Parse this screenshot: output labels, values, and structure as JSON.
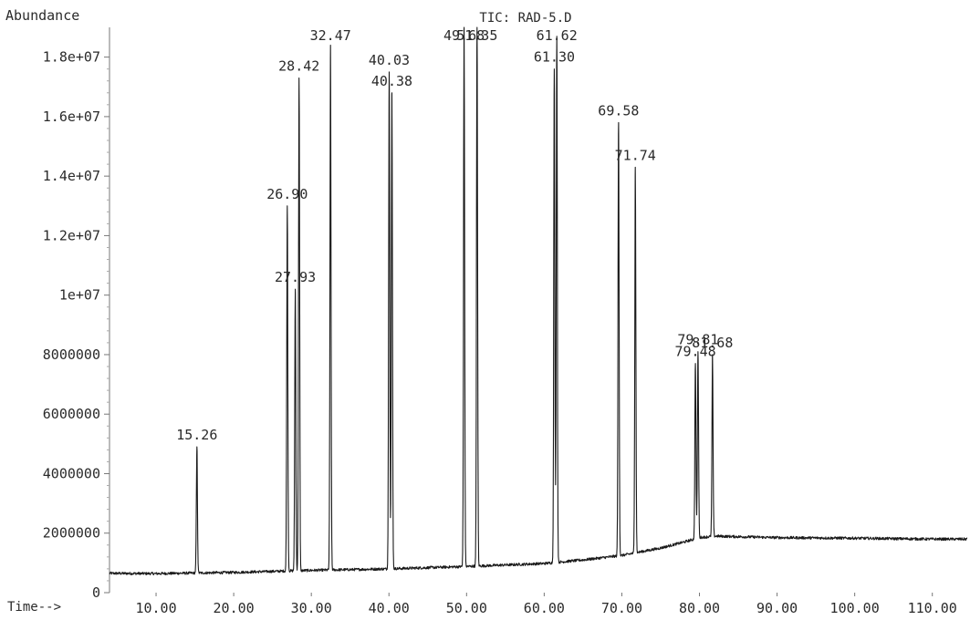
{
  "chart_data": {
    "type": "line",
    "title": "TIC: RAD-5.D",
    "ylabel": "Abundance",
    "xlabel": "Time-->",
    "xlim": [
      4.0,
      114.5
    ],
    "ylim": [
      0,
      19000000
    ],
    "y_ticks": [
      {
        "value": 0,
        "label": "0"
      },
      {
        "value": 2000000,
        "label": "2000000"
      },
      {
        "value": 4000000,
        "label": "4000000"
      },
      {
        "value": 6000000,
        "label": "6000000"
      },
      {
        "value": 8000000,
        "label": "8000000"
      },
      {
        "value": 10000000,
        "label": "1e+07"
      },
      {
        "value": 12000000,
        "label": "1.2e+07"
      },
      {
        "value": 14000000,
        "label": "1.4e+07"
      },
      {
        "value": 16000000,
        "label": "1.6e+07"
      },
      {
        "value": 18000000,
        "label": "1.8e+07"
      }
    ],
    "x_ticks": [
      {
        "value": 10,
        "label": "10.00"
      },
      {
        "value": 20,
        "label": "20.00"
      },
      {
        "value": 30,
        "label": "30.00"
      },
      {
        "value": 40,
        "label": "40.00"
      },
      {
        "value": 50,
        "label": "50.00"
      },
      {
        "value": 60,
        "label": "60.00"
      },
      {
        "value": 70,
        "label": "70.00"
      },
      {
        "value": 80,
        "label": "80.00"
      },
      {
        "value": 90,
        "label": "90.00"
      },
      {
        "value": 100,
        "label": "100.00"
      },
      {
        "value": 110,
        "label": "110.00"
      }
    ],
    "baseline": [
      [
        4.0,
        650000
      ],
      [
        10,
        640000
      ],
      [
        20,
        680000
      ],
      [
        30,
        750000
      ],
      [
        40,
        800000
      ],
      [
        50,
        880000
      ],
      [
        60,
        980000
      ],
      [
        65,
        1100000
      ],
      [
        70,
        1250000
      ],
      [
        72,
        1350000
      ],
      [
        75,
        1500000
      ],
      [
        78,
        1700000
      ],
      [
        80,
        1850000
      ],
      [
        82,
        1900000
      ],
      [
        90,
        1850000
      ],
      [
        100,
        1830000
      ],
      [
        110,
        1800000
      ],
      [
        114.5,
        1800000
      ]
    ],
    "peaks": [
      {
        "rt": 15.26,
        "label": "15.26",
        "height": 4900000
      },
      {
        "rt": 26.9,
        "label": "26.90",
        "height": 13000000
      },
      {
        "rt": 27.93,
        "label": "27.93",
        "height": 10200000
      },
      {
        "rt": 28.42,
        "label": "28.42",
        "height": 17300000
      },
      {
        "rt": 32.47,
        "label": "32.47",
        "height": 18400000
      },
      {
        "rt": 40.03,
        "label": "40.03",
        "height": 17500000
      },
      {
        "rt": 40.38,
        "label": "40.38",
        "height": 16800000
      },
      {
        "rt": 49.68,
        "label": "49.68",
        "height": 19000000
      },
      {
        "rt": 51.35,
        "label": "51.35",
        "height": 19000000
      },
      {
        "rt": 61.3,
        "label": "61.30",
        "height": 17600000
      },
      {
        "rt": 61.62,
        "label": "61.62",
        "height": 18700000
      },
      {
        "rt": 69.58,
        "label": "69.58",
        "height": 15800000
      },
      {
        "rt": 71.74,
        "label": "71.74",
        "height": 14300000
      },
      {
        "rt": 79.48,
        "label": "79.48",
        "height": 7700000
      },
      {
        "rt": 79.81,
        "label": "79.81",
        "height": 8100000
      },
      {
        "rt": 81.68,
        "label": "81.68",
        "height": 8000000
      }
    ],
    "grid": false,
    "legend": "none"
  }
}
